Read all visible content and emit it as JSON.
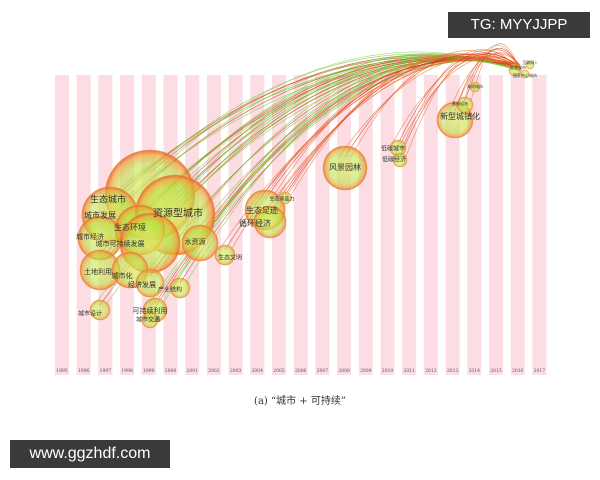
{
  "watermark": "TG: MYYJJPP",
  "site": "www.ggzhdf.com",
  "caption": "(a) “城市 + 可持续”",
  "years": [
    "1995",
    "1996",
    "1997",
    "1998",
    "1999",
    "2000",
    "2001",
    "2002",
    "2003",
    "2004",
    "2005",
    "2006",
    "2007",
    "2008",
    "2009",
    "2010",
    "2011",
    "2012",
    "2013",
    "2014",
    "2015",
    "2016",
    "2017"
  ],
  "nodes": [
    {
      "label": "生态城市"
    },
    {
      "label": "城市发展"
    },
    {
      "label": "资源型城市"
    },
    {
      "label": "生态环境"
    },
    {
      "label": "城市经济"
    },
    {
      "label": "城市可持续发展"
    },
    {
      "label": "水资源"
    },
    {
      "label": "土地利用"
    },
    {
      "label": "城市化"
    },
    {
      "label": "经济发展"
    },
    {
      "label": "产业结构"
    },
    {
      "label": "城市设计"
    },
    {
      "label": "可持续利用"
    },
    {
      "label": "城市交通"
    },
    {
      "label": "生态足迹"
    },
    {
      "label": "循环经济"
    },
    {
      "label": "生态承载力"
    },
    {
      "label": "生态文明"
    },
    {
      "label": "风景园林"
    },
    {
      "label": "低碳城市"
    },
    {
      "label": "低碳经济"
    },
    {
      "label": "新型城镇化"
    },
    {
      "label": "基础设施"
    },
    {
      "label": "海绵城市"
    },
    {
      "label": "智慧城市"
    },
    {
      "label": "互联网+"
    },
    {
      "label": "国家中心城市"
    }
  ]
}
